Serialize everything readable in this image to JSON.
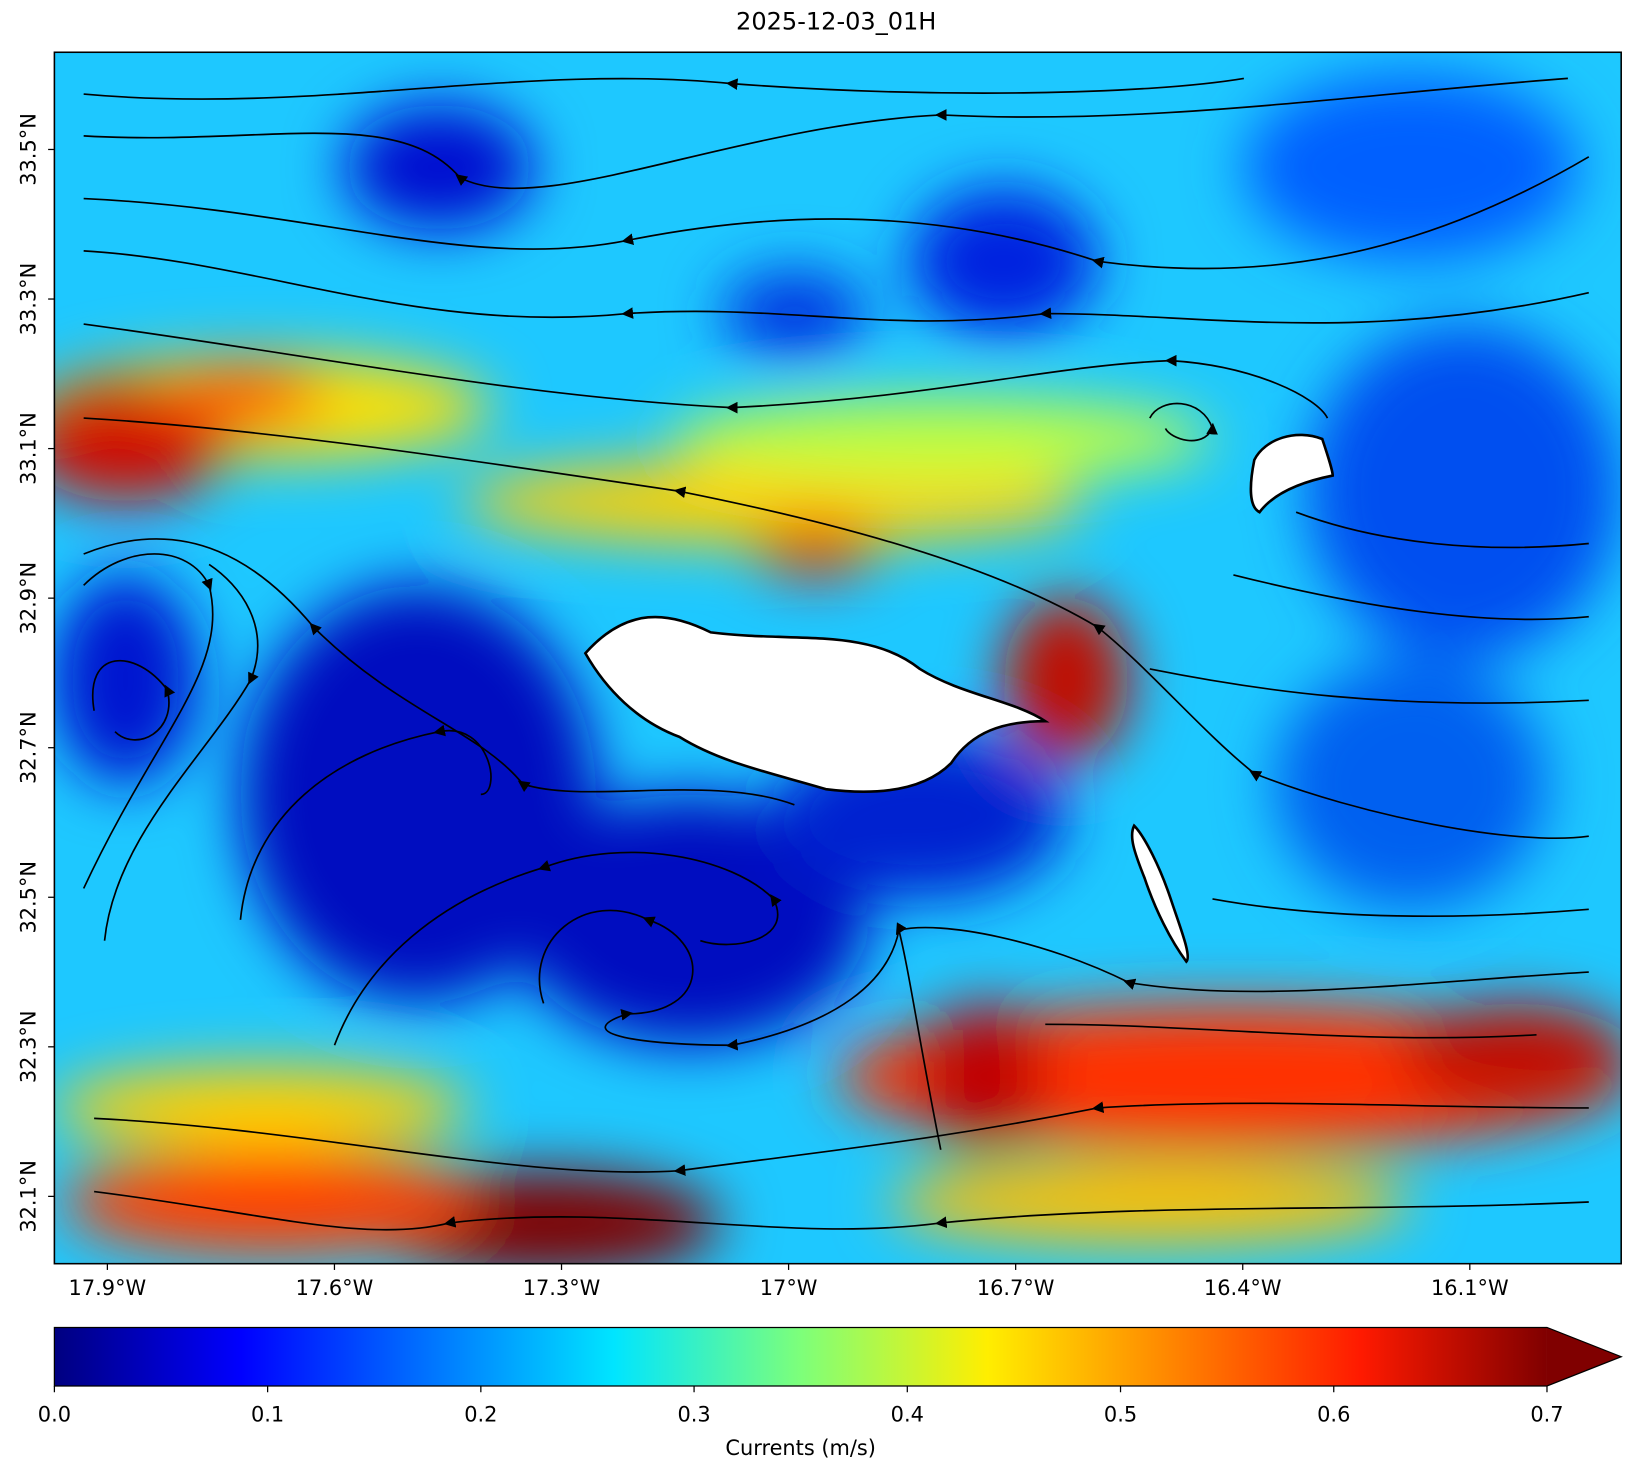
{
  "chart_data": {
    "type": "map",
    "title": "2025-12-03_01H",
    "xlim": [
      -17.97,
      -15.9
    ],
    "ylim": [
      32.01,
      33.63
    ],
    "xticks": [
      {
        "value": -17.9,
        "label": "17.9°W"
      },
      {
        "value": -17.6,
        "label": "17.6°W"
      },
      {
        "value": -17.3,
        "label": "17.3°W"
      },
      {
        "value": -17,
        "label": "17°W"
      },
      {
        "value": -16.7,
        "label": "16.7°W"
      },
      {
        "value": -16.4,
        "label": "16.4°W"
      },
      {
        "value": -16.1,
        "label": "16.1°W"
      }
    ],
    "yticks": [
      {
        "value": 32.1,
        "label": "32.1°N"
      },
      {
        "value": 32.3,
        "label": "32.3°N"
      },
      {
        "value": 32.5,
        "label": "32.5°N"
      },
      {
        "value": 32.7,
        "label": "32.7°N"
      },
      {
        "value": 32.9,
        "label": "32.9°N"
      },
      {
        "value": 33.1,
        "label": "33.1°N"
      },
      {
        "value": 33.3,
        "label": "33.3°N"
      },
      {
        "value": 33.5,
        "label": "33.5°N"
      }
    ],
    "colorbar": {
      "label": "Currents (m/s)",
      "colormap": "jet",
      "clim": [
        0,
        0.7
      ],
      "extend": "max",
      "ticks": [
        {
          "value": 0,
          "label": "0.0"
        },
        0.1,
        0.2,
        0.3,
        0.4,
        0.5,
        0.6,
        0.7
      ]
    }
  }
}
